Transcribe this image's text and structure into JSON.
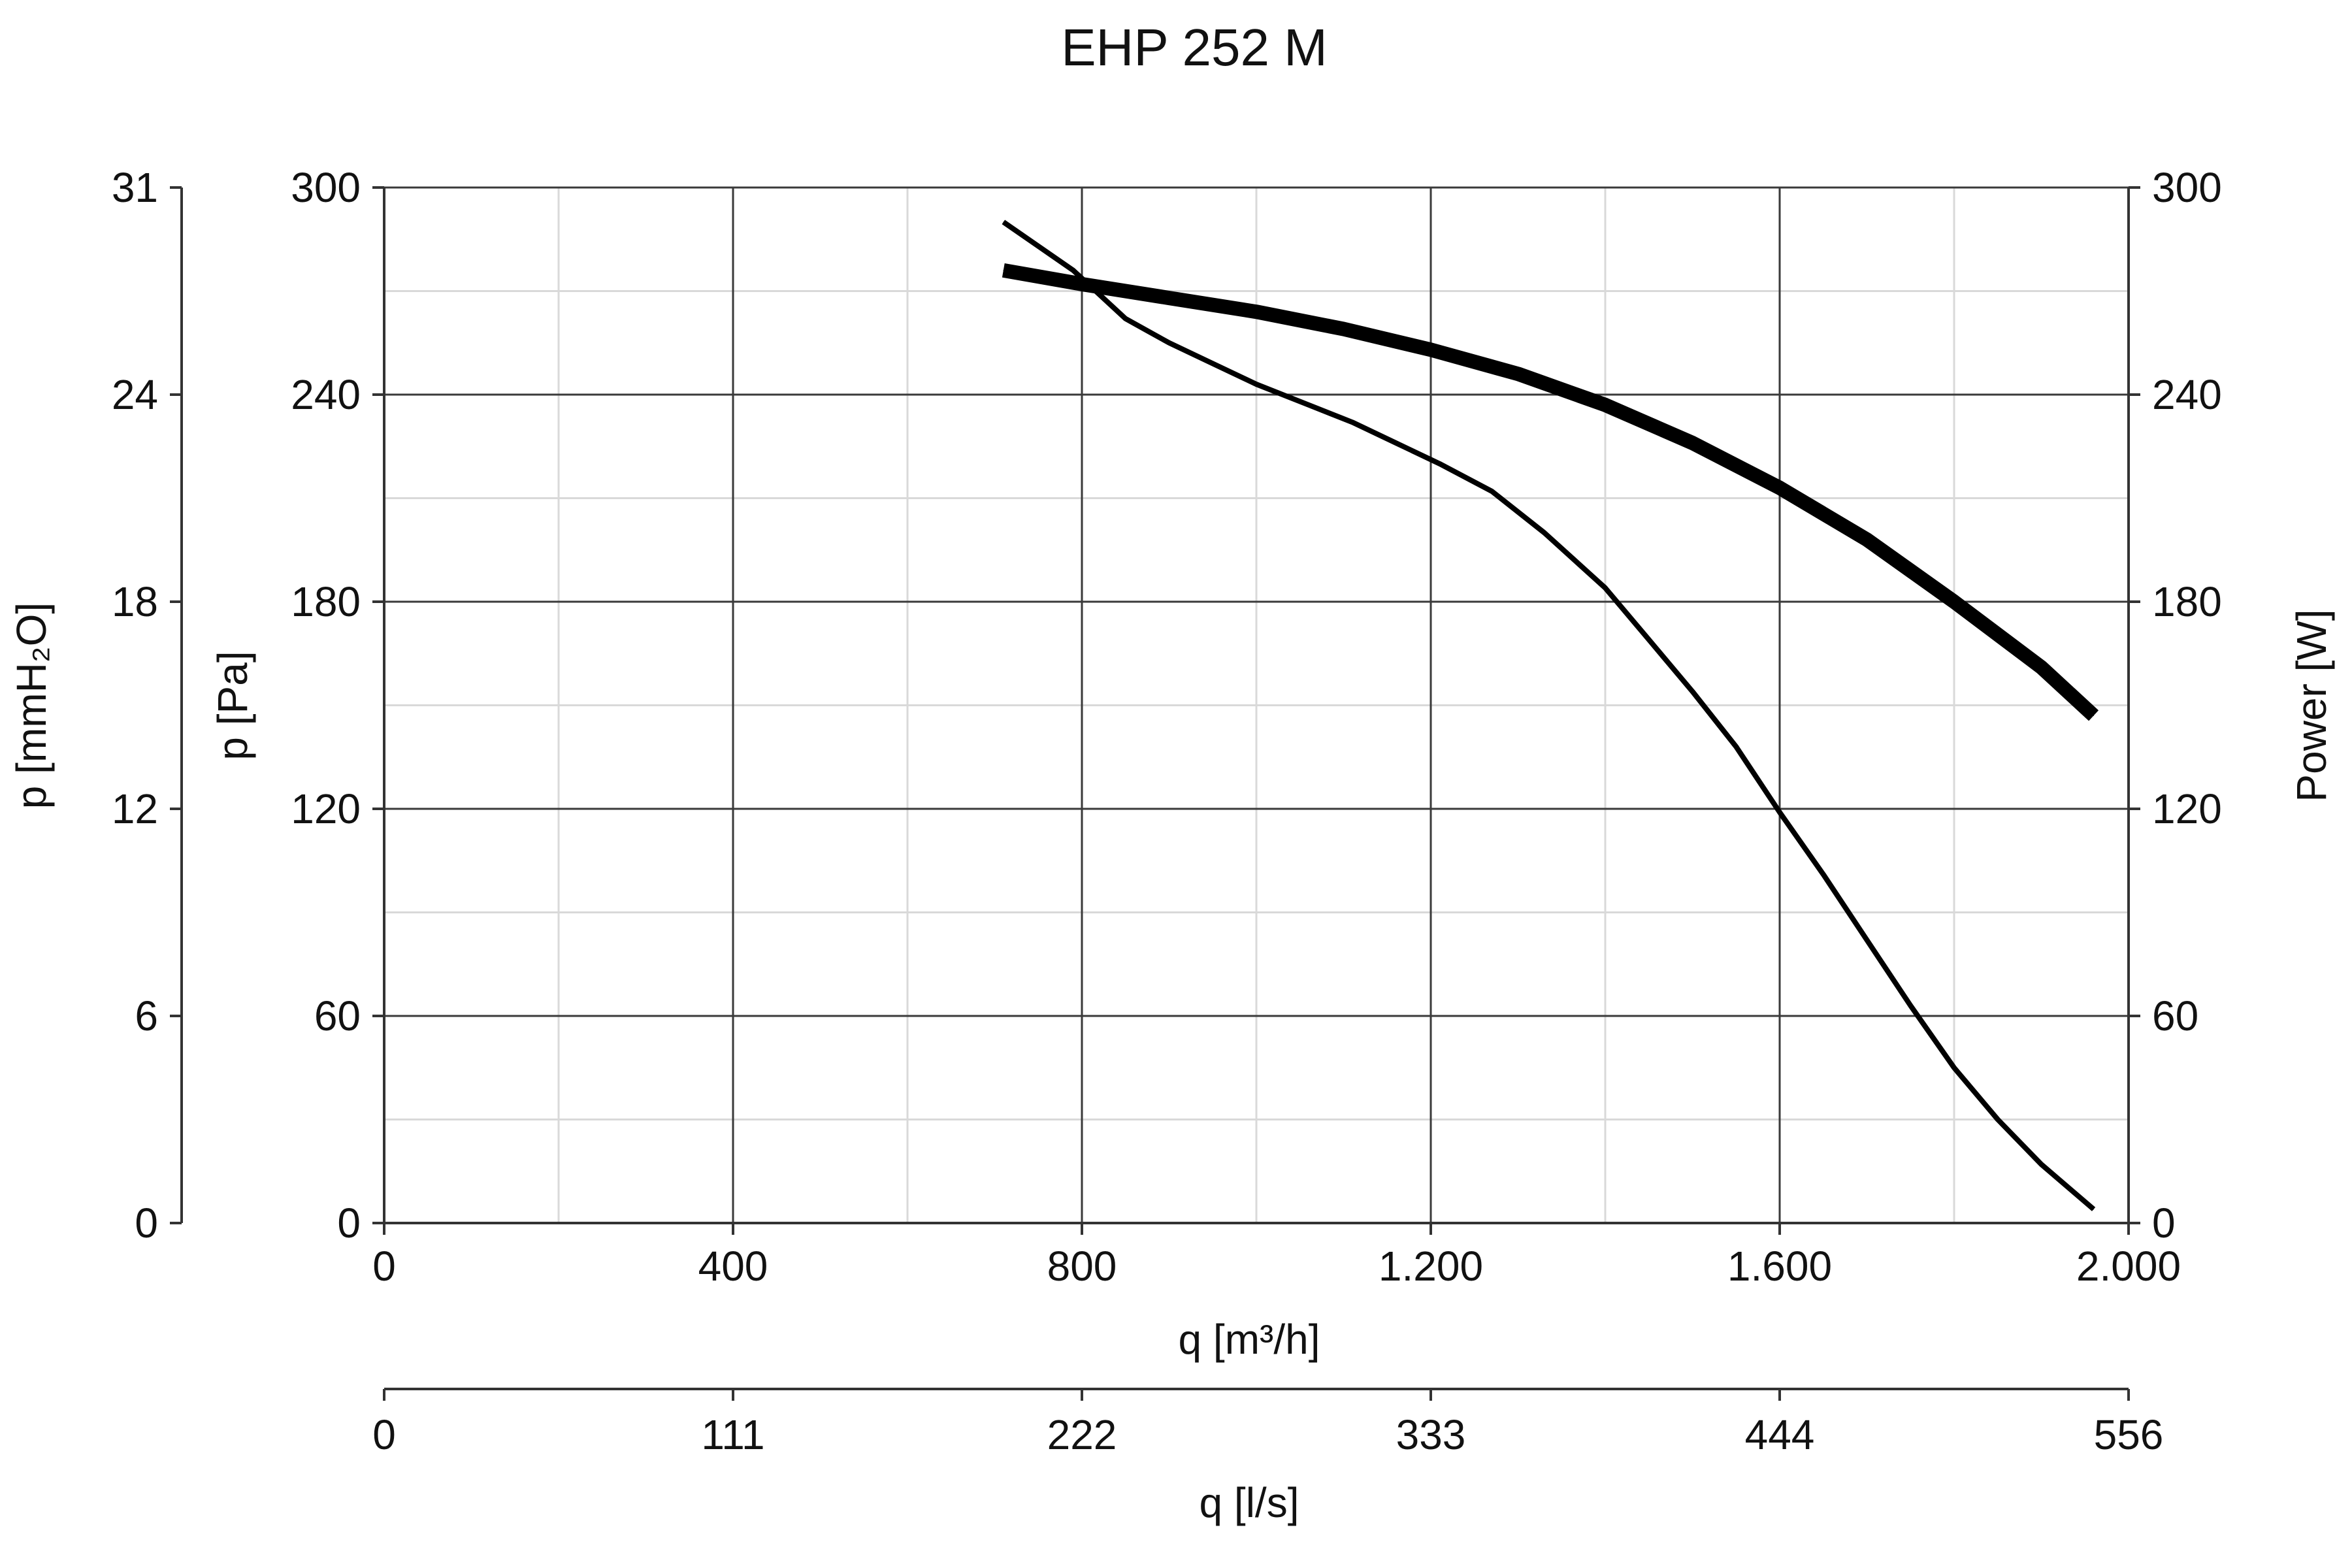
{
  "chart_data": {
    "type": "line",
    "title": "EHP 252 M",
    "xlabel": "q [m³/h]",
    "x2label": "q [l/s]",
    "ylabel": "p [Pa]",
    "y2label": "p [mmH₂O]",
    "y3label": "Power [W]",
    "xlim": [
      0,
      2000
    ],
    "ylim": [
      0,
      300
    ],
    "grid": true,
    "x_ticks": [
      {
        "value": 0,
        "label": "0"
      },
      {
        "value": 400,
        "label": "400"
      },
      {
        "value": 800,
        "label": "800"
      },
      {
        "value": 1200,
        "label": "1.200"
      },
      {
        "value": 1600,
        "label": "1.600"
      },
      {
        "value": 2000,
        "label": "2.000"
      }
    ],
    "x2_ticks": [
      {
        "value": 0,
        "label": "0"
      },
      {
        "value": 400,
        "label": "111"
      },
      {
        "value": 800,
        "label": "222"
      },
      {
        "value": 1200,
        "label": "333"
      },
      {
        "value": 1600,
        "label": "444"
      },
      {
        "value": 2000,
        "label": "556"
      }
    ],
    "y_ticks": [
      {
        "value": 0,
        "label": "0"
      },
      {
        "value": 60,
        "label": "60"
      },
      {
        "value": 120,
        "label": "120"
      },
      {
        "value": 180,
        "label": "180"
      },
      {
        "value": 240,
        "label": "240"
      },
      {
        "value": 300,
        "label": "300"
      }
    ],
    "y2_ticks": [
      {
        "value": 0,
        "label": "0"
      },
      {
        "value": 60,
        "label": "6"
      },
      {
        "value": 120,
        "label": "12"
      },
      {
        "value": 180,
        "label": "18"
      },
      {
        "value": 240,
        "label": "24"
      },
      {
        "value": 300,
        "label": "31"
      }
    ],
    "y3_ticks": [
      {
        "value": 0,
        "label": "0"
      },
      {
        "value": 60,
        "label": "60"
      },
      {
        "value": 120,
        "label": "120"
      },
      {
        "value": 180,
        "label": "180"
      },
      {
        "value": 240,
        "label": "240"
      },
      {
        "value": 300,
        "label": "300"
      }
    ],
    "series": [
      {
        "axis": "pressure",
        "x": [
          710,
          790,
          850,
          900,
          950,
          1000,
          1060,
          1110,
          1160,
          1210,
          1270,
          1330,
          1400,
          1450,
          1500,
          1550,
          1600,
          1650,
          1700,
          1750,
          1800,
          1850,
          1900,
          1960
        ],
        "y": [
          290,
          276,
          262,
          255,
          249,
          243,
          237,
          232,
          226,
          220,
          212,
          200,
          184,
          169,
          154,
          138,
          119,
          101,
          82,
          63,
          45,
          30,
          17,
          4
        ]
      },
      {
        "axis": "power",
        "x": [
          710,
          800,
          900,
          1000,
          1100,
          1200,
          1300,
          1400,
          1500,
          1600,
          1700,
          1800,
          1900,
          1960
        ],
        "y": [
          276,
          272,
          268,
          264,
          259,
          253,
          246,
          237,
          226,
          213,
          198,
          180,
          161,
          147
        ]
      }
    ]
  }
}
